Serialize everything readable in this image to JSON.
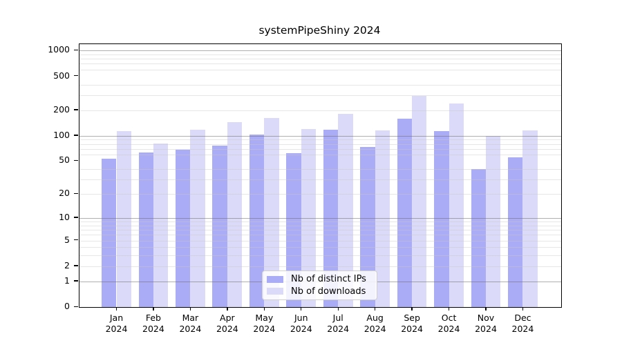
{
  "chart_data": {
    "type": "bar",
    "title": "systemPipeShiny 2024",
    "categories": [
      "Jan",
      "Feb",
      "Mar",
      "Apr",
      "May",
      "Jun",
      "Jul",
      "Aug",
      "Sep",
      "Oct",
      "Nov",
      "Dec"
    ],
    "category_year": "2024",
    "series": [
      {
        "name": "Nb of distinct IPs",
        "color": "#abacf6",
        "values": [
          53,
          63,
          68,
          77,
          104,
          62,
          118,
          74,
          160,
          114,
          40,
          55
        ]
      },
      {
        "name": "Nb of downloads",
        "color": "#dbdbf9",
        "values": [
          114,
          81,
          117,
          144,
          163,
          119,
          182,
          116,
          293,
          240,
          100,
          116
        ]
      }
    ],
    "y_axis": {
      "scale": "log1p",
      "tick_values": [
        0,
        1,
        2,
        5,
        10,
        20,
        50,
        100,
        200,
        500,
        1000
      ],
      "tick_labels": [
        "0",
        "1",
        "2",
        "5",
        "10",
        "20",
        "50",
        "100",
        "200",
        "500",
        "1000"
      ],
      "major_grid_values": [
        1,
        10,
        100,
        1000
      ],
      "minor_grid_values": [
        2,
        3,
        4,
        5,
        6,
        7,
        8,
        9,
        20,
        30,
        40,
        60,
        70,
        80,
        90,
        200,
        300,
        400,
        600,
        700,
        800,
        900
      ],
      "range_top": 1230
    },
    "legend": {
      "position": "lower center",
      "entries": [
        "Nb of distinct IPs",
        "Nb of downloads"
      ]
    },
    "grid": true,
    "xlabel": "",
    "ylabel": ""
  }
}
